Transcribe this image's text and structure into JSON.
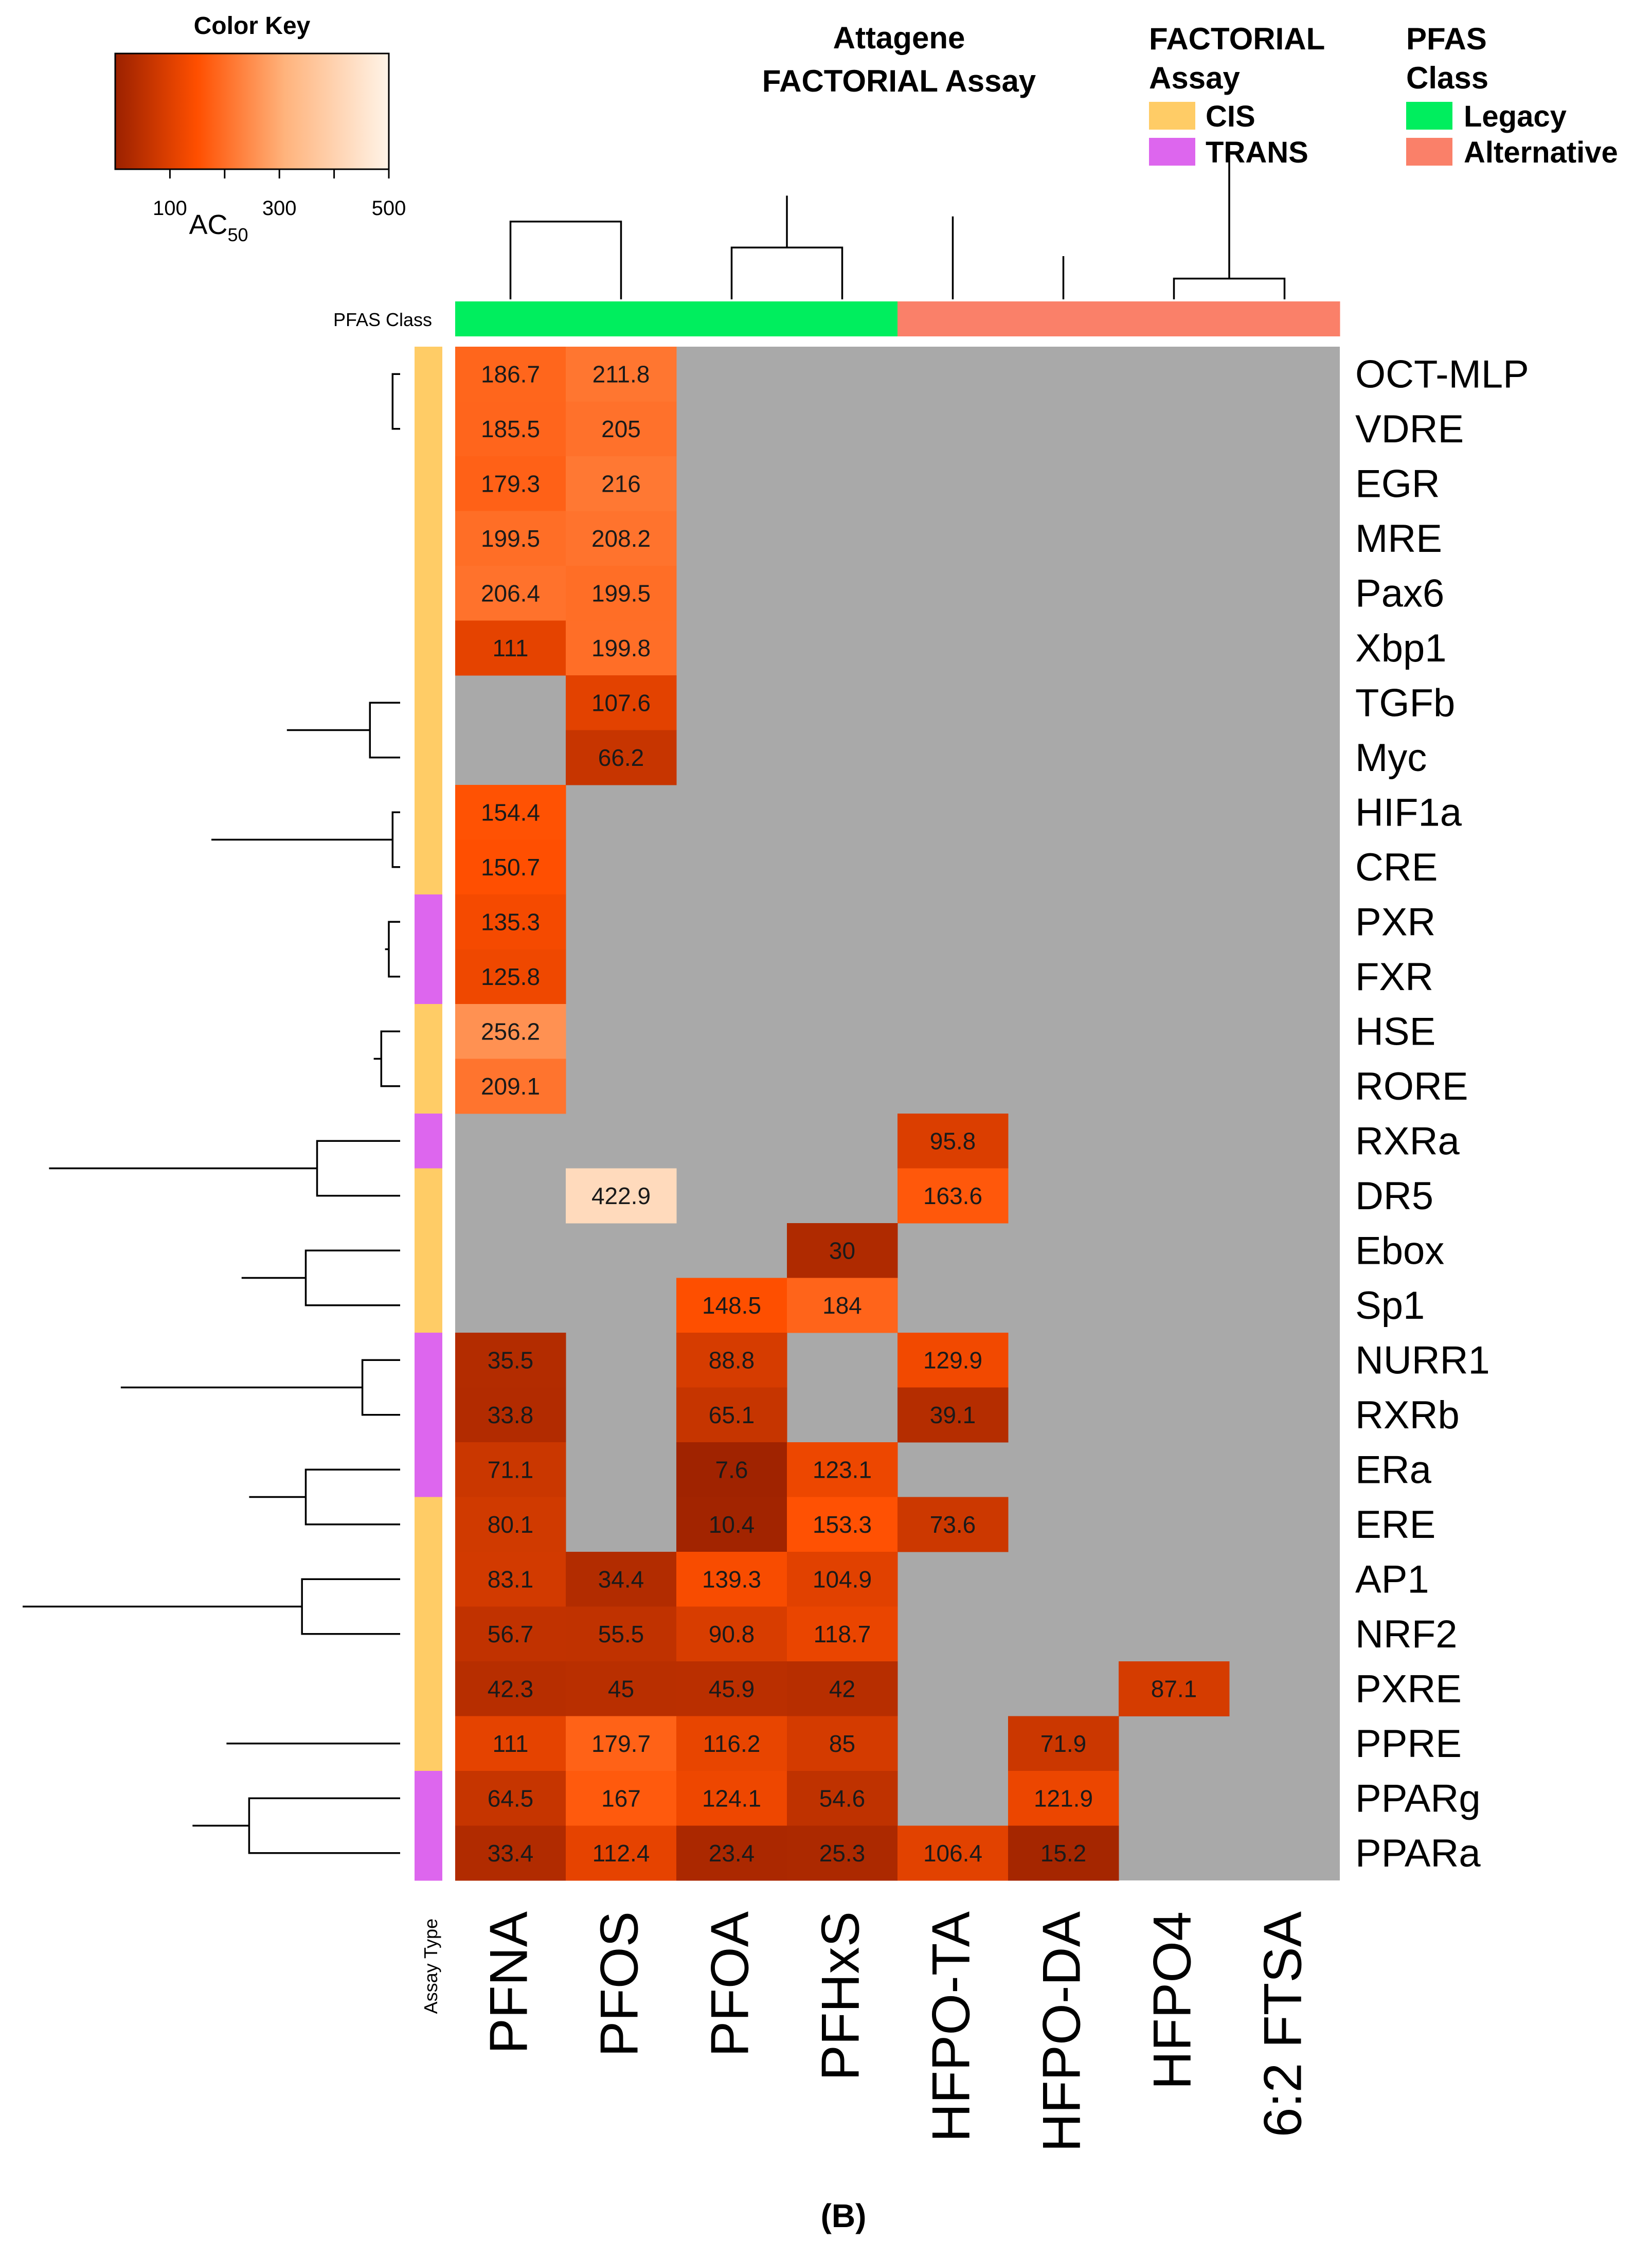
{
  "chart_data": {
    "type": "heatmap",
    "title": "Attagene FACTORIAL Assay",
    "panel_label": "(B)",
    "color_key": {
      "title": "Color Key",
      "measure_main": "AC",
      "measure_sub": "50",
      "range": [
        0,
        500
      ],
      "ticks": [
        {
          "value": 100,
          "label": "100"
        },
        {
          "value": 200,
          "label": ""
        },
        {
          "value": 300,
          "label": "300"
        },
        {
          "value": 400,
          "label": ""
        },
        {
          "value": 500,
          "label": "500"
        }
      ],
      "colors": [
        "#9b2100",
        "#ff4f00",
        "#ffb37c",
        "#fff4e8"
      ]
    },
    "legend_assay": {
      "title_line1": "FACTORIAL",
      "title_line2": "Assay",
      "items": [
        {
          "label": "CIS",
          "color": "#ffcc66"
        },
        {
          "label": "TRANS",
          "color": "#dd66ee"
        }
      ]
    },
    "legend_class": {
      "title_line1": "PFAS",
      "title_line2": "Class",
      "items": [
        {
          "label": "Legacy",
          "color": "#00ee5e"
        },
        {
          "label": "Alternative",
          "color": "#fa8069"
        }
      ]
    },
    "pfas_class_label": "PFAS Class",
    "assay_type_label": "Assay Type",
    "missing_color": "#a9a9a9",
    "columns": [
      "PFNA",
      "PFOS",
      "PFOA",
      "PFHxS",
      "HFPO-TA",
      "HFPO-DA",
      "HFPO4",
      "6:2 FTSA"
    ],
    "column_class": [
      "Legacy",
      "Legacy",
      "Legacy",
      "Legacy",
      "Alternative",
      "Alternative",
      "Alternative",
      "Alternative"
    ],
    "rows": [
      "OCT-MLP",
      "VDRE",
      "EGR",
      "MRE",
      "Pax6",
      "Xbp1",
      "TGFb",
      "Myc",
      "HIF1a",
      "CRE",
      "PXR",
      "FXR",
      "HSE",
      "RORE",
      "RXRa",
      "DR5",
      "Ebox",
      "Sp1",
      "NURR1",
      "RXRb",
      "ERa",
      "ERE",
      "AP1",
      "NRF2",
      "PXRE",
      "PPRE",
      "PPARg",
      "PPARa"
    ],
    "row_assay_type": [
      "CIS",
      "CIS",
      "CIS",
      "CIS",
      "CIS",
      "CIS",
      "CIS",
      "CIS",
      "CIS",
      "CIS",
      "TRANS",
      "TRANS",
      "CIS",
      "CIS",
      "TRANS",
      "CIS",
      "CIS",
      "CIS",
      "TRANS",
      "TRANS",
      "TRANS",
      "CIS",
      "CIS",
      "CIS",
      "CIS",
      "CIS",
      "TRANS",
      "TRANS"
    ],
    "values": [
      [
        186.7,
        211.8,
        null,
        null,
        null,
        null,
        null,
        null
      ],
      [
        185.5,
        205,
        null,
        null,
        null,
        null,
        null,
        null
      ],
      [
        179.3,
        216,
        null,
        null,
        null,
        null,
        null,
        null
      ],
      [
        199.5,
        208.2,
        null,
        null,
        null,
        null,
        null,
        null
      ],
      [
        206.4,
        199.5,
        null,
        null,
        null,
        null,
        null,
        null
      ],
      [
        111,
        199.8,
        null,
        null,
        null,
        null,
        null,
        null
      ],
      [
        null,
        107.6,
        null,
        null,
        null,
        null,
        null,
        null
      ],
      [
        null,
        66.2,
        null,
        null,
        null,
        null,
        null,
        null
      ],
      [
        154.4,
        null,
        null,
        null,
        null,
        null,
        null,
        null
      ],
      [
        150.7,
        null,
        null,
        null,
        null,
        null,
        null,
        null
      ],
      [
        135.3,
        null,
        null,
        null,
        null,
        null,
        null,
        null
      ],
      [
        125.8,
        null,
        null,
        null,
        null,
        null,
        null,
        null
      ],
      [
        256.2,
        null,
        null,
        null,
        null,
        null,
        null,
        null
      ],
      [
        209.1,
        null,
        null,
        null,
        null,
        null,
        null,
        null
      ],
      [
        null,
        null,
        null,
        null,
        95.8,
        null,
        null,
        null
      ],
      [
        null,
        422.9,
        null,
        null,
        163.6,
        null,
        null,
        null
      ],
      [
        null,
        null,
        null,
        30,
        null,
        null,
        null,
        null
      ],
      [
        null,
        null,
        148.5,
        184,
        null,
        null,
        null,
        null
      ],
      [
        35.5,
        null,
        88.8,
        null,
        129.9,
        null,
        null,
        null
      ],
      [
        33.8,
        null,
        65.1,
        null,
        39.1,
        null,
        null,
        null
      ],
      [
        71.1,
        null,
        7.6,
        123.1,
        null,
        null,
        null,
        null
      ],
      [
        80.1,
        null,
        10.4,
        153.3,
        73.6,
        null,
        null,
        null
      ],
      [
        83.1,
        34.4,
        139.3,
        104.9,
        null,
        null,
        null,
        null
      ],
      [
        56.7,
        55.5,
        90.8,
        118.7,
        null,
        null,
        null,
        null
      ],
      [
        42.3,
        45,
        45.9,
        42,
        null,
        null,
        87.1,
        null
      ],
      [
        111,
        179.7,
        116.2,
        85,
        null,
        71.9,
        null,
        null
      ],
      [
        64.5,
        167,
        124.1,
        54.6,
        null,
        121.9,
        null,
        null
      ],
      [
        33.4,
        112.4,
        23.4,
        25.3,
        106.4,
        15.2,
        null,
        null
      ]
    ],
    "column_dendrogram": [
      [
        0,
        1,
        0.45,
        2
      ],
      [
        2,
        3,
        0.3,
        3
      ],
      [
        9,
        10,
        0.6,
        4
      ],
      [
        6,
        7,
        0.12,
        5
      ],
      [
        5,
        12,
        0.25,
        6
      ],
      [
        4,
        13,
        0.48,
        7
      ],
      [
        11,
        14,
        0.84,
        8
      ]
    ],
    "row_dendrogram": [
      [
        0,
        1,
        0.02,
        2
      ],
      [
        29,
        2,
        0.03,
        3
      ],
      [
        30,
        3,
        0.035,
        4
      ],
      [
        31,
        4,
        0.04,
        5
      ],
      [
        32,
        5,
        0.05,
        6
      ],
      [
        6,
        7,
        0.08,
        2
      ],
      [
        33,
        34,
        0.3,
        8
      ],
      [
        8,
        9,
        0.02,
        2
      ],
      [
        10,
        11,
        0.03,
        2
      ],
      [
        36,
        37,
        0.04,
        4
      ],
      [
        12,
        13,
        0.05,
        2
      ],
      [
        38,
        39,
        0.07,
        6
      ],
      [
        35,
        40,
        0.5,
        14
      ],
      [
        14,
        15,
        0.22,
        2
      ],
      [
        16,
        17,
        0.25,
        2
      ],
      [
        42,
        43,
        0.42,
        4
      ],
      [
        18,
        19,
        0.1,
        2
      ],
      [
        20,
        21,
        0.25,
        2
      ],
      [
        45,
        46,
        0.4,
        4
      ],
      [
        44,
        47,
        0.74,
        8
      ],
      [
        41,
        48,
        0.93,
        22
      ],
      [
        22,
        23,
        0.26,
        2
      ],
      [
        50,
        24,
        0.4,
        3
      ],
      [
        26,
        27,
        0.4,
        2
      ],
      [
        25,
        52,
        0.46,
        3
      ],
      [
        51,
        53,
        0.55,
        6
      ],
      [
        49,
        54,
        1.0,
        28
      ]
    ]
  }
}
